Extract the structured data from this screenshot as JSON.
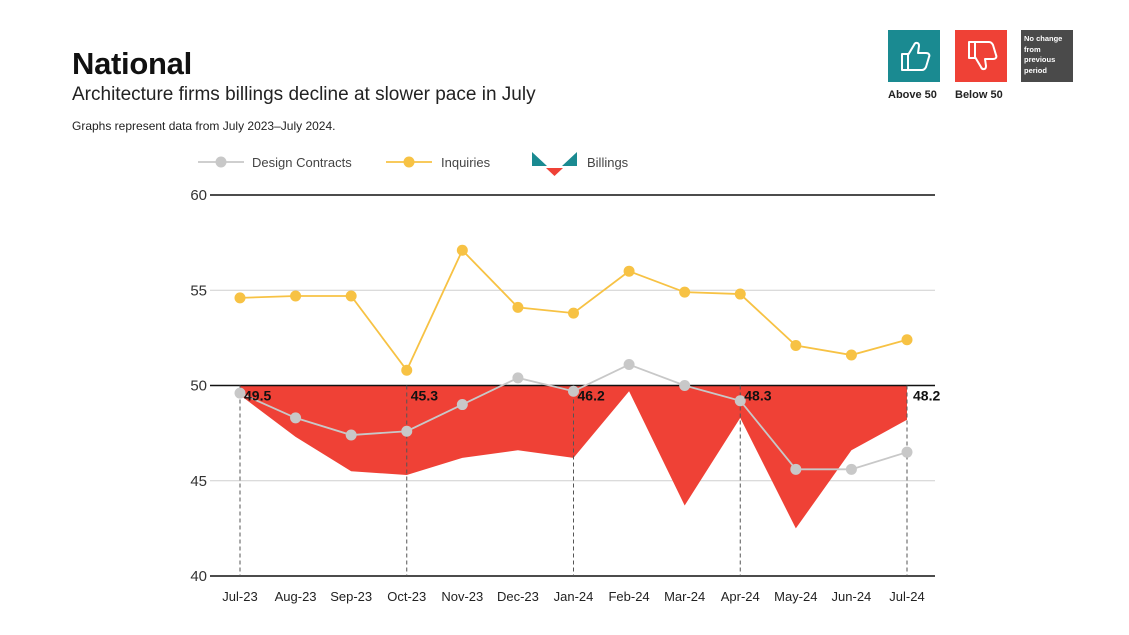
{
  "header": {
    "title": "National",
    "subtitle": "Architecture firms billings decline at slower pace in July",
    "note": "Graphs represent data from July 2023–July 2024."
  },
  "key": {
    "above_label": "Above 50",
    "below_label": "Below 50",
    "nochange_lines": [
      "No change",
      "from",
      "previous",
      "period"
    ],
    "above_color": "#1a8a91",
    "below_color": "#ef4136",
    "nochange_color": "#4a4a4a"
  },
  "chart_data": {
    "type": "line",
    "categories": [
      "Jul-23",
      "Aug-23",
      "Sep-23",
      "Oct-23",
      "Nov-23",
      "Dec-23",
      "Jan-24",
      "Feb-24",
      "Mar-24",
      "Apr-24",
      "May-24",
      "Jun-24",
      "Jul-24"
    ],
    "ylim": [
      40,
      60
    ],
    "yticks": [
      40,
      45,
      50,
      55,
      60
    ],
    "baseline": 50,
    "series": [
      {
        "name": "Design Contracts",
        "color": "#c8c8c8",
        "values": [
          49.6,
          48.3,
          47.4,
          47.6,
          49.0,
          50.4,
          49.7,
          51.1,
          50.0,
          49.2,
          45.6,
          45.6,
          46.5
        ]
      },
      {
        "name": "Inquiries",
        "color": "#f7c244",
        "values": [
          54.6,
          54.7,
          54.7,
          50.8,
          57.1,
          54.1,
          53.8,
          56.0,
          54.9,
          54.8,
          52.1,
          51.6,
          52.4
        ]
      },
      {
        "name": "Billings",
        "color": "#ef4136",
        "values": [
          49.5,
          47.3,
          45.5,
          45.3,
          46.2,
          46.6,
          46.2,
          49.7,
          43.7,
          48.3,
          42.5,
          46.6,
          48.2
        ]
      }
    ],
    "annotations": [
      {
        "index": 0,
        "label": "49.5"
      },
      {
        "index": 3,
        "label": "45.3"
      },
      {
        "index": 6,
        "label": "46.2"
      },
      {
        "index": 9,
        "label": "48.3"
      },
      {
        "index": 12,
        "label": "48.2"
      }
    ],
    "legend": {
      "placement": "top-left"
    }
  }
}
